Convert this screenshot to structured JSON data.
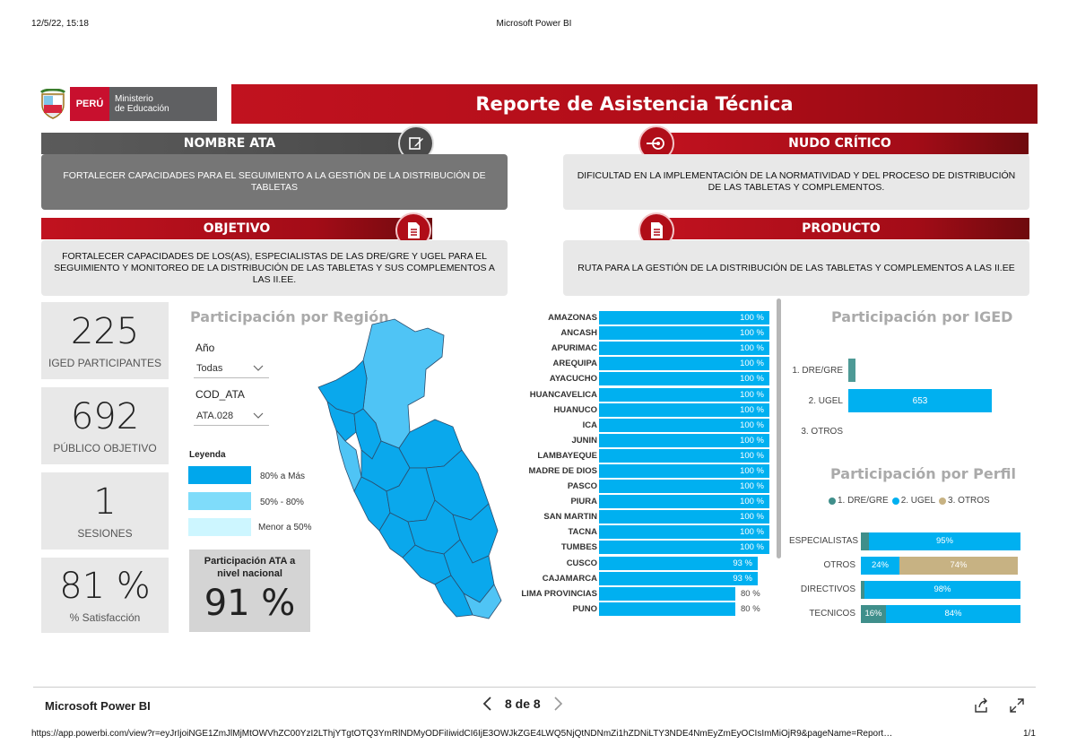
{
  "print_header": {
    "datetime": "12/5/22, 15:18",
    "title": "Microsoft Power BI"
  },
  "logo": {
    "country": "PERÚ",
    "ministry_line1": "Ministerio",
    "ministry_line2": "de Educación"
  },
  "report_title": "Reporte de Asistencia Técnica",
  "sections": {
    "nombre_ata": {
      "title": "NOMBRE ATA",
      "text": "FORTALECER CAPACIDADES PARA EL SEGUIMIENTO A LA GESTIÓN DE LA DISTRIBUCIÓN DE TABLETAS"
    },
    "nudo_critico": {
      "title": "NUDO CRÍTICO",
      "text": "DIFICULTAD EN LA IMPLEMENTACIÓN DE LA NORMATIVIDAD Y DEL PROCESO DE DISTRIBUCIÓN DE LAS TABLETAS Y COMPLEMENTOS."
    },
    "objetivo": {
      "title": "OBJETIVO",
      "text": "FORTALECER CAPACIDADES DE LOS(AS), ESPECIALISTAS DE LAS DRE/GRE Y UGEL PARA EL SEGUIMIENTO Y MONITOREO DE LA DISTRIBUCIÓN DE LAS TABLETAS Y SUS COMPLEMENTOS A LAS II.EE."
    },
    "producto": {
      "title": "PRODUCTO",
      "text": "RUTA PARA LA GESTIÓN DE LA DISTRIBUCIÓN DE LAS TABLETAS Y COMPLEMENTOS A LAS II.EE"
    }
  },
  "kpis": [
    {
      "value": "225",
      "label": "IGED PARTICIPANTES"
    },
    {
      "value": "692",
      "label": "PÚBLICO OBJETIVO"
    },
    {
      "value": "1",
      "label": "SESIONES"
    },
    {
      "value": "81 %",
      "label": "% Satisfacción"
    }
  ],
  "region_map": {
    "title": "Participación por Región",
    "filters": [
      {
        "label": "Año",
        "value": "Todas"
      },
      {
        "label": "COD_ATA",
        "value": "ATA.028"
      }
    ],
    "legend_title": "Leyenda",
    "legend": [
      {
        "label": "80% a Más",
        "color": "#00a7ec"
      },
      {
        "label": "50% - 80%",
        "color": "#7fdcfa"
      },
      {
        "label": "Menor a 50%",
        "color": "#cdf6ff"
      }
    ],
    "national_title": "Participación ATA a nivel nacional",
    "national_value": "91 %"
  },
  "chart_data": [
    {
      "type": "bar",
      "orientation": "horizontal",
      "categories": [
        "AMAZONAS",
        "ANCASH",
        "APURIMAC",
        "AREQUIPA",
        "AYACUCHO",
        "HUANCAVELICA",
        "HUANUCO",
        "ICA",
        "JUNIN",
        "LAMBAYEQUE",
        "MADRE DE DIOS",
        "PASCO",
        "PIURA",
        "SAN MARTIN",
        "TACNA",
        "TUMBES",
        "CUSCO",
        "CAJAMARCA",
        "LIMA PROVINCIAS",
        "PUNO"
      ],
      "values": [
        100,
        100,
        100,
        100,
        100,
        100,
        100,
        100,
        100,
        100,
        100,
        100,
        100,
        100,
        100,
        100,
        93,
        93,
        80,
        80
      ],
      "labels": [
        "100 %",
        "100 %",
        "100 %",
        "100 %",
        "100 %",
        "100 %",
        "100 %",
        "100 %",
        "100 %",
        "100 %",
        "100 %",
        "100 %",
        "100 %",
        "100 %",
        "100 %",
        "100 %",
        "93 %",
        "93 %",
        "80 %",
        "80 %"
      ],
      "color": "#00b0f0"
    },
    {
      "type": "bar",
      "orientation": "horizontal",
      "title": "Participación por IGED",
      "categories": [
        "1. DRE/GRE",
        "2. UGEL",
        "3. OTROS"
      ],
      "values": [
        7,
        653,
        0
      ],
      "labels": [
        "",
        "653",
        ""
      ],
      "colors": [
        "#4e9a96",
        "#00b0f0",
        "#00b0f0"
      ]
    },
    {
      "type": "bar",
      "orientation": "horizontal",
      "stacked": true,
      "normalized": true,
      "title": "Participación por Perfil",
      "legend": [
        "1. DRE/GRE",
        "2. UGEL",
        "3. OTROS"
      ],
      "legend_colors": [
        "#3f8f8b",
        "#00b0f0",
        "#c7b283"
      ],
      "categories": [
        "ESPECIALISTAS",
        "OTROS",
        "DIRECTIVOS",
        "TECNICOS"
      ],
      "series": [
        {
          "name": "1. DRE/GRE",
          "values": [
            5,
            0,
            2,
            16
          ],
          "labels": [
            "",
            "",
            "",
            "16%"
          ]
        },
        {
          "name": "2. UGEL",
          "values": [
            95,
            24,
            98,
            84
          ],
          "labels": [
            "95%",
            "24%",
            "98%",
            "84%"
          ]
        },
        {
          "name": "3. OTROS",
          "values": [
            0,
            74,
            0,
            0
          ],
          "labels": [
            "",
            "74%",
            "",
            ""
          ]
        }
      ]
    }
  ],
  "footer": {
    "app": "Microsoft Power BI",
    "page": "8 de 8"
  },
  "print_footer": {
    "url": "https://app.powerbi.com/view?r=eyJrIjoiNGE1ZmJlMjMtOWVhZC00YzI2LThjYTgtOTQ3YmRlNDMyODFiIiwidCI6IjE3OWJkZGE4LWQ5NjQtNDNmZi1hZDNiLTY3NDE4NmEyZmEyOCIsImMiOjR9&pageName=Report…",
    "page_count": "1/1"
  }
}
